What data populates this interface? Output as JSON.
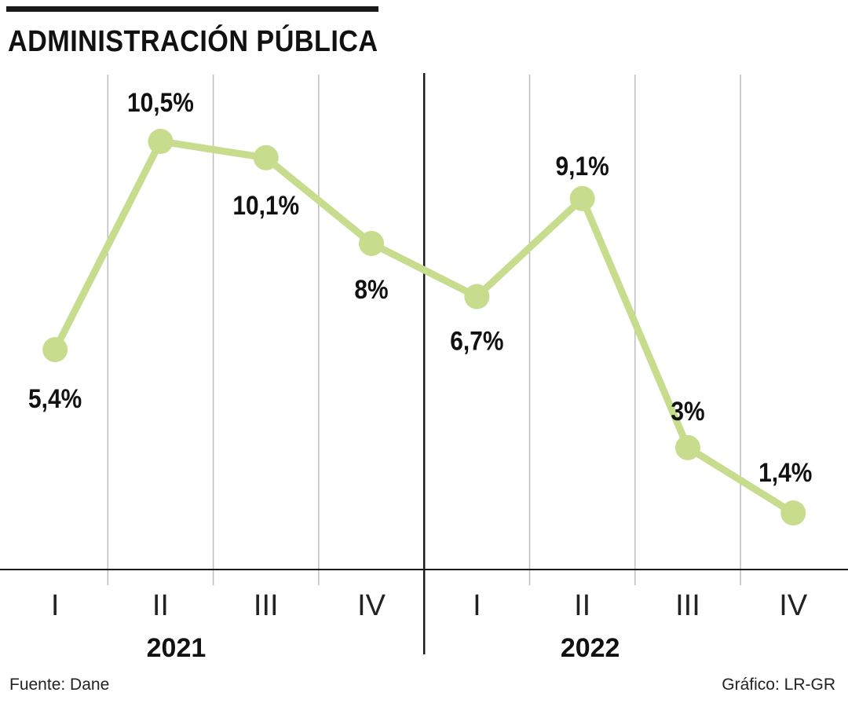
{
  "title": "ADMINISTRACIÓN PÚBLICA",
  "source": "Fuente: Dane",
  "credit": "Gráfico: LR-GR",
  "colors": {
    "line": "#c8dc8e",
    "text": "#111111",
    "grid": "#bdbdbd",
    "axis": "#1a1a1a"
  },
  "chart_data": {
    "type": "line",
    "categories": [
      "I",
      "II",
      "III",
      "IV",
      "I",
      "II",
      "III",
      "IV"
    ],
    "groups": [
      {
        "label": "2021",
        "categories": [
          "I",
          "II",
          "III",
          "IV"
        ]
      },
      {
        "label": "2022",
        "categories": [
          "I",
          "II",
          "III",
          "IV"
        ]
      }
    ],
    "values": [
      5.4,
      10.5,
      10.1,
      8,
      6.7,
      9.1,
      3,
      1.4
    ],
    "data_labels": [
      "5,4%",
      "10,5%",
      "10,1%",
      "8%",
      "6,7%",
      "9,1%",
      "3%",
      "1,4%"
    ],
    "ylim": [
      0,
      12
    ],
    "grid": true
  }
}
